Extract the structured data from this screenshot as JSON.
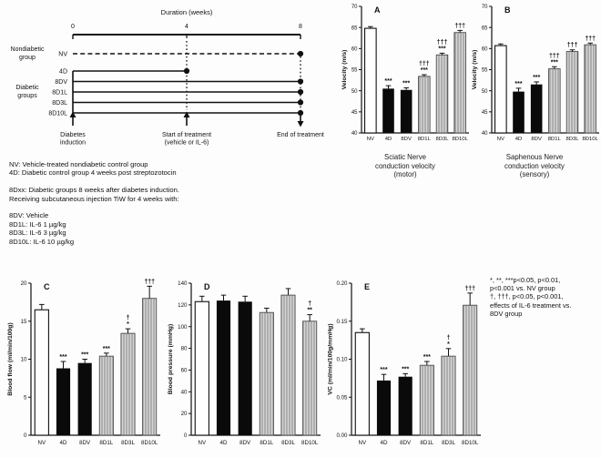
{
  "figure": {
    "background": "#fdfdfd",
    "ink": "#111111"
  },
  "colors": {
    "open_bar": "#ffffff",
    "solid_bar": "#0a0a0a",
    "hatch_bg": "#d6d6d6",
    "hatch_stripe": "#878787",
    "ink": "#111111"
  },
  "timeline": {
    "title": "Duration (weeks)",
    "axis_ticks": [
      "0",
      "4",
      "8"
    ],
    "side_labels": {
      "nondiabetic_lines": [
        "Nondiabetic",
        "group"
      ],
      "diabetic_lines": [
        "Diabetic",
        "groups"
      ]
    },
    "groups": [
      {
        "label": "NV",
        "style": "dashed",
        "to": 8
      },
      {
        "label": "4D",
        "style": "solid",
        "to": 4
      },
      {
        "label": "8DV",
        "style": "solid",
        "to": 8
      },
      {
        "label": "8D1L",
        "style": "solid",
        "to": 8
      },
      {
        "label": "8D3L",
        "style": "solid",
        "to": 8
      },
      {
        "label": "8D10L",
        "style": "solid",
        "to": 8
      }
    ],
    "events": [
      {
        "week": 0,
        "arrow": "up",
        "label_lines": [
          "Diabetes",
          "induction"
        ]
      },
      {
        "week": 4,
        "arrow": "up",
        "label_lines": [
          "Start of treatment",
          "(vehicle or IL-6)"
        ]
      },
      {
        "week": 8,
        "arrow": "down",
        "label_lines": [
          "End of treatment"
        ]
      }
    ]
  },
  "legend_block": {
    "lines": [
      "NV: Vehicle-treated nondiabetic control group",
      "4D: Diabetic control group 4 weeks post streptozotocin",
      "",
      "8Dxx: Diabetic groups 8 weeks after diabetes induction.",
      "Receiving subcutaneous injection TiW for 4 weeks with:",
      "",
      "8DV: Vehicle",
      "8D1L: IL-6 1 µg/kg",
      "8D3L: IL-6 3 µg/kg",
      "8D10L: IL-6 10 µg/kg"
    ]
  },
  "sig_note": {
    "lines": [
      "*, **, ***p<0.05, p<0.01,",
      "p<0.001 vs. NV group",
      "†, †††, p<0.05, p<0.001,",
      "effects of IL-6 treatment vs.",
      "8DV group"
    ]
  },
  "chart_data": [
    {
      "id": "A",
      "panel": "A",
      "type": "bar",
      "title": "Sciatic Nerve conduction velocity (motor)",
      "caption_lines": [
        "Sciatic Nerve",
        "conduction velocity",
        "(motor)"
      ],
      "ylabel": "Velocity (m/s)",
      "ylim": [
        40,
        70
      ],
      "yticks": [
        40,
        45,
        50,
        55,
        60,
        65,
        70
      ],
      "categories": [
        "NV",
        "4D",
        "8DV",
        "8D1L",
        "8D3L",
        "8D10L"
      ],
      "values": [
        64.8,
        50.5,
        50.2,
        53.4,
        58.5,
        63.8
      ],
      "errors": [
        0.4,
        0.7,
        0.5,
        0.4,
        0.4,
        0.5
      ],
      "bar_styles": [
        "open",
        "solid",
        "solid",
        "hatch",
        "hatch",
        "hatch"
      ],
      "annotations": [
        [],
        [
          "***"
        ],
        [
          "***"
        ],
        [
          "†††",
          "***"
        ],
        [
          "†††",
          "***"
        ],
        [
          "†††"
        ]
      ]
    },
    {
      "id": "B",
      "panel": "B",
      "type": "bar",
      "title": "Saphenous Nerve conduction velocity (sensory)",
      "caption_lines": [
        "Saphenous Nerve",
        "conduction velocity",
        "(sensory)"
      ],
      "ylabel": "Velocity (m/s)",
      "ylim": [
        40,
        70
      ],
      "yticks": [
        40,
        45,
        50,
        55,
        60,
        65,
        70
      ],
      "categories": [
        "NV",
        "4D",
        "8DV",
        "8D1L",
        "8D3L",
        "8D10L"
      ],
      "values": [
        60.7,
        49.8,
        51.5,
        55.2,
        59.3,
        60.9
      ],
      "errors": [
        0.4,
        0.8,
        0.6,
        0.5,
        0.4,
        0.4
      ],
      "bar_styles": [
        "open",
        "solid",
        "solid",
        "hatch",
        "hatch",
        "hatch"
      ],
      "annotations": [
        [],
        [
          "***"
        ],
        [
          "***"
        ],
        [
          "†††",
          "***"
        ],
        [
          "†††"
        ],
        [
          "†††"
        ]
      ]
    },
    {
      "id": "C",
      "panel": "C",
      "type": "bar",
      "title": "Blood flow (ml/min/100g)",
      "ylabel": "Blood flow (ml/min/100g)",
      "ylim": [
        0,
        20
      ],
      "yticks": [
        0,
        5,
        10,
        15,
        20
      ],
      "categories": [
        "NV",
        "4D",
        "8DV",
        "8D1L",
        "8D3L",
        "8D10L"
      ],
      "values": [
        16.5,
        8.8,
        9.5,
        10.4,
        13.4,
        18.0
      ],
      "errors": [
        0.7,
        0.9,
        0.5,
        0.4,
        0.6,
        1.6
      ],
      "bar_styles": [
        "open",
        "solid",
        "solid",
        "hatch",
        "hatch",
        "hatch"
      ],
      "annotations": [
        [],
        [
          "***"
        ],
        [
          "***"
        ],
        [
          "***"
        ],
        [
          "†",
          "*"
        ],
        [
          "†††"
        ]
      ]
    },
    {
      "id": "D",
      "panel": "D",
      "type": "bar",
      "title": "Blood pressure (mmHg)",
      "ylabel": "Blood pressure (mmHg)",
      "ylim": [
        0,
        140
      ],
      "yticks": [
        0,
        20,
        40,
        60,
        80,
        100,
        120,
        140
      ],
      "categories": [
        "NV",
        "4D",
        "8DV",
        "8D1L",
        "8D3L",
        "8D10L"
      ],
      "values": [
        123,
        124,
        123,
        113,
        129,
        105
      ],
      "errors": [
        5,
        5,
        5,
        4,
        6,
        6
      ],
      "bar_styles": [
        "open",
        "solid",
        "solid",
        "hatch",
        "hatch",
        "hatch"
      ],
      "annotations": [
        [],
        [],
        [],
        [],
        [],
        [
          "†",
          "**"
        ]
      ]
    },
    {
      "id": "E",
      "panel": "E",
      "type": "bar",
      "title": "VC (ml/min/100g/mmHg)",
      "ylabel": "VC (ml/min/100g/mmHg)",
      "ylim": [
        0,
        0.2
      ],
      "yticks": [
        0,
        0.05,
        0.1,
        0.15,
        0.2
      ],
      "ytick_labels": [
        "0.00",
        "0.05",
        "0.10",
        "0.15",
        "0.20"
      ],
      "categories": [
        "NV",
        "4D",
        "8DV",
        "8D1L",
        "8D3L",
        "8D10L"
      ],
      "values": [
        0.135,
        0.072,
        0.077,
        0.092,
        0.104,
        0.171
      ],
      "errors": [
        0.005,
        0.008,
        0.004,
        0.005,
        0.01,
        0.016
      ],
      "bar_styles": [
        "open",
        "solid",
        "solid",
        "hatch",
        "hatch",
        "hatch"
      ],
      "annotations": [
        [],
        [
          "***"
        ],
        [
          "***"
        ],
        [
          "***"
        ],
        [
          "†",
          "*"
        ],
        [
          "†††"
        ]
      ]
    }
  ]
}
